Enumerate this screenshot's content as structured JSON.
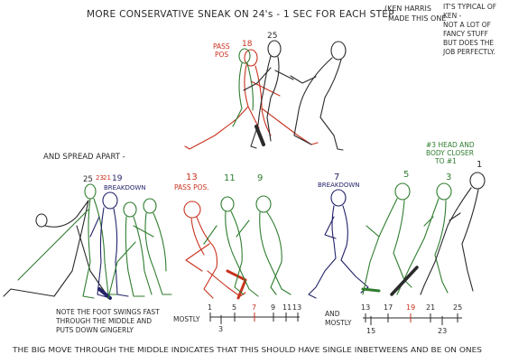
{
  "title": "MORE CONSERVATIVE SNEAK ON 24's - 1 SEC FOR EACH STEP",
  "credit": [
    "(KEN HARRIS",
    "MADE THIS ONE"
  ],
  "side_note": [
    "IT'S TYPICAL OF",
    "KEN -",
    "NOT A LOT OF",
    "FANCY STUFF",
    "BUT DOES THE",
    "JOB PERFECTLY."
  ],
  "top_group": {
    "passing_label": [
      "PASS",
      "POS"
    ],
    "frame_18": "18",
    "frame_25": "25"
  },
  "spread_label": "AND SPREAD APART -",
  "bottom_frames": {
    "f25": "25",
    "f23": "23",
    "f21": "21",
    "f19": "19",
    "breakdown_left": "BREAKDOWN",
    "f13": "13",
    "pass_pos": "PASS POS.",
    "f11": "11",
    "f9": "9",
    "f7": "7",
    "breakdown_right": "BREAKDOWN",
    "f5": "5",
    "f3": "3",
    "f1": "1"
  },
  "head_note": [
    "#3 HEAD AND",
    "BODY CLOSER",
    "TO #1"
  ],
  "foot_note": [
    "NOTE THE FOOT SWINGS FAST",
    "THROUGH THE MIDDLE AND",
    "PUTS DOWN GINGERLY"
  ],
  "chart_left": {
    "label": "MOSTLY",
    "ticks": [
      "1",
      "3",
      "5",
      "7",
      "9",
      "11",
      "13"
    ]
  },
  "chart_right": {
    "label": [
      "AND",
      "MOSTLY"
    ],
    "ticks": [
      "13",
      "15",
      "17",
      "19",
      "21",
      "23",
      "25"
    ]
  },
  "bottom_caption": "THE BIG MOVE THROUGH THE MIDDLE INDICATES THAT THIS SHOULD HAVE SINGLE INBETWEENS AND BE ON ONES",
  "colors": {
    "black": "#2a2a2a",
    "red": "#c8321e",
    "green": "#2f7d2f",
    "blue": "#23236a"
  }
}
